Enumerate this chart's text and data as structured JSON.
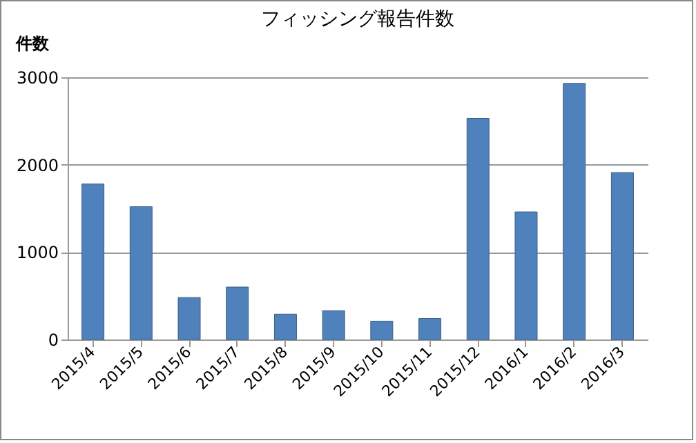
{
  "chart_data": {
    "type": "bar",
    "title": "フィッシング報告件数",
    "ylabel": "件数",
    "categories": [
      "2015/4",
      "2015/5",
      "2015/6",
      "2015/7",
      "2015/8",
      "2015/9",
      "2015/10",
      "2015/11",
      "2015/12",
      "2016/1",
      "2016/2",
      "2016/3"
    ],
    "values": [
      1780,
      1520,
      480,
      600,
      290,
      330,
      210,
      240,
      2530,
      1460,
      2930,
      1910
    ],
    "color": "#4f81bd",
    "ylim": [
      0,
      3000
    ],
    "yticks": [
      0,
      1000,
      2000,
      3000
    ],
    "grid": "y"
  }
}
